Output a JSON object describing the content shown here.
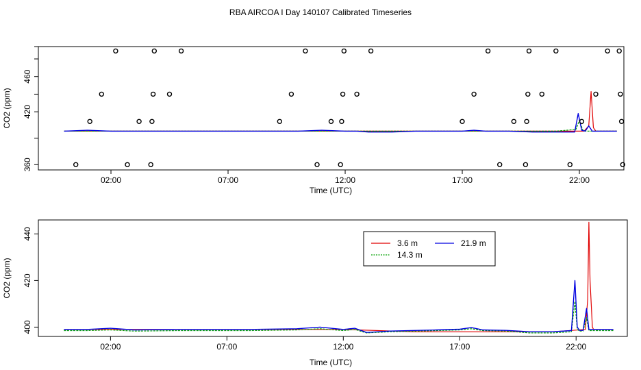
{
  "figure_title": "RBA AIRCOA I  Day 140107  Calibrated Timeseries",
  "colors": {
    "h3_6": "#e00000",
    "h14_3": "#00a000",
    "h21_9": "#0000e0"
  },
  "chart_data": [
    {
      "type": "line",
      "panel": "top",
      "xlabel": "Time (UTC)",
      "ylabel": "CO2 (ppm)",
      "xlim": [
        -1.1,
        23.9
      ],
      "ylim": [
        354,
        494
      ],
      "x_ticks": [
        2,
        7,
        12,
        17,
        22
      ],
      "x_tick_labels": [
        "02:00",
        "07:00",
        "12:00",
        "17:00",
        "22:00"
      ],
      "y_ticks": [
        360,
        400,
        440,
        480
      ],
      "y_tick_labels": [
        "360",
        "",
        "420",
        "",
        "460",
        "",
        ""
      ],
      "y_tick_values": [
        360,
        390,
        420,
        440,
        460,
        480,
        494
      ],
      "legend": "none",
      "grid": false,
      "series": [
        {
          "color_key": "h3_6",
          "x": [
            0,
            2,
            5,
            9,
            12,
            15,
            18,
            21,
            22.2,
            22.4,
            22.5,
            22.6,
            22.7,
            22.8,
            23.6
          ],
          "y": [
            398,
            398,
            398,
            398,
            398,
            398,
            398,
            398,
            398,
            404,
            443,
            402,
            398,
            398,
            398
          ]
        },
        {
          "color_key": "h14_3",
          "x": [
            0,
            2,
            5,
            9,
            12,
            15,
            18,
            21,
            21.85,
            22.0,
            22.15,
            22.3,
            23.6
          ],
          "y": [
            398,
            398,
            398,
            398,
            398,
            398,
            398,
            398,
            400,
            410,
            399,
            398,
            398
          ]
        },
        {
          "color_key": "h21_9",
          "x": [
            0,
            1,
            2,
            3,
            4,
            5,
            6,
            7,
            8,
            9,
            10,
            11,
            12,
            12.5,
            13,
            14,
            15,
            16,
            17,
            17.5,
            18,
            19,
            20,
            21,
            21.8,
            21.95,
            22.1,
            22.25,
            22.4,
            22.55,
            22.7,
            23.6
          ],
          "y": [
            398,
            399,
            398,
            398,
            398,
            398,
            398,
            398,
            398,
            398,
            398,
            399,
            398,
            398,
            397,
            397,
            398,
            398,
            398,
            399,
            398,
            398,
            397,
            397,
            397,
            418,
            399,
            398,
            404,
            398,
            398,
            398
          ]
        }
      ],
      "markers": {
        "shape": "open-circle",
        "points": [
          [
            0.5,
            360
          ],
          [
            1.1,
            409
          ],
          [
            1.6,
            440
          ],
          [
            2.2,
            489
          ],
          [
            2.7,
            360
          ],
          [
            3.2,
            409
          ],
          [
            3.7,
            360
          ],
          [
            3.75,
            409
          ],
          [
            3.8,
            440
          ],
          [
            3.85,
            489
          ],
          [
            4.5,
            440
          ],
          [
            5.0,
            489
          ],
          [
            9.2,
            409
          ],
          [
            9.7,
            440
          ],
          [
            10.3,
            489
          ],
          [
            10.8,
            360
          ],
          [
            11.4,
            409
          ],
          [
            11.8,
            360
          ],
          [
            11.85,
            409
          ],
          [
            11.9,
            440
          ],
          [
            11.95,
            489
          ],
          [
            12.5,
            440
          ],
          [
            13.1,
            489
          ],
          [
            17.0,
            409
          ],
          [
            17.5,
            440
          ],
          [
            18.1,
            489
          ],
          [
            18.6,
            360
          ],
          [
            19.2,
            409
          ],
          [
            19.7,
            360
          ],
          [
            19.75,
            409
          ],
          [
            19.8,
            440
          ],
          [
            19.85,
            489
          ],
          [
            20.4,
            440
          ],
          [
            21.0,
            489
          ],
          [
            21.6,
            360
          ],
          [
            22.1,
            409
          ],
          [
            22.7,
            440
          ],
          [
            23.2,
            489
          ],
          [
            23.7,
            489
          ],
          [
            23.75,
            440
          ],
          [
            23.8,
            409
          ],
          [
            23.85,
            360
          ]
        ]
      }
    },
    {
      "type": "line",
      "panel": "bottom",
      "xlabel": "Time (UTC)",
      "ylabel": "CO2 (ppm)",
      "xlim": [
        -1.1,
        24.2
      ],
      "ylim": [
        396,
        446
      ],
      "x_ticks": [
        2,
        7,
        12,
        17,
        22
      ],
      "x_tick_labels": [
        "02:00",
        "07:00",
        "12:00",
        "17:00",
        "22:00"
      ],
      "y_ticks": [
        400,
        420,
        440
      ],
      "y_tick_labels": [
        "400",
        "420",
        "440"
      ],
      "legend": "top-right",
      "grid": false,
      "series": [
        {
          "name": "3.6 m",
          "color_key": "h3_6",
          "x": [
            0,
            2,
            5,
            9,
            12,
            15,
            18,
            21,
            22.4,
            22.5,
            22.55,
            22.6,
            22.7,
            22.75,
            23.6
          ],
          "y": [
            399,
            399,
            399,
            399,
            399,
            398,
            398,
            398,
            399,
            412,
            445,
            420,
            400,
            399,
            399
          ]
        },
        {
          "name": "14.3 m",
          "color_key": "h14_3",
          "x": [
            0,
            1,
            2,
            3,
            5,
            8,
            10,
            11,
            12,
            12.5,
            13,
            14,
            16,
            17,
            17.5,
            18,
            19,
            20,
            21,
            21.8,
            21.95,
            22.05,
            22.15,
            22.3,
            22.45,
            22.55,
            22.7,
            23.6
          ],
          "y": [
            398.5,
            398.5,
            398.8,
            398.3,
            398.5,
            398.5,
            398.8,
            399.3,
            398.5,
            399,
            397.5,
            398,
            398.5,
            398.8,
            399.3,
            398.5,
            398.3,
            397.5,
            397.5,
            398,
            411,
            399,
            398.3,
            398.3,
            404,
            398.5,
            398.5,
            398.5
          ]
        },
        {
          "name": "21.9 m",
          "color_key": "h21_9",
          "x": [
            0,
            1,
            2,
            3,
            5,
            8,
            10,
            11,
            12,
            12.5,
            13,
            14,
            16,
            17,
            17.5,
            18,
            19,
            20,
            21,
            21.8,
            21.95,
            22.05,
            22.15,
            22.3,
            22.45,
            22.55,
            22.7,
            23.6
          ],
          "y": [
            399,
            399,
            399.5,
            398.8,
            399,
            399,
            399.3,
            400,
            399,
            399.5,
            397.7,
            398.3,
            398.8,
            399.1,
            399.8,
            398.8,
            398.6,
            398,
            398,
            398.5,
            420,
            400,
            398.6,
            398.6,
            408,
            399,
            399,
            399
          ]
        }
      ]
    }
  ]
}
